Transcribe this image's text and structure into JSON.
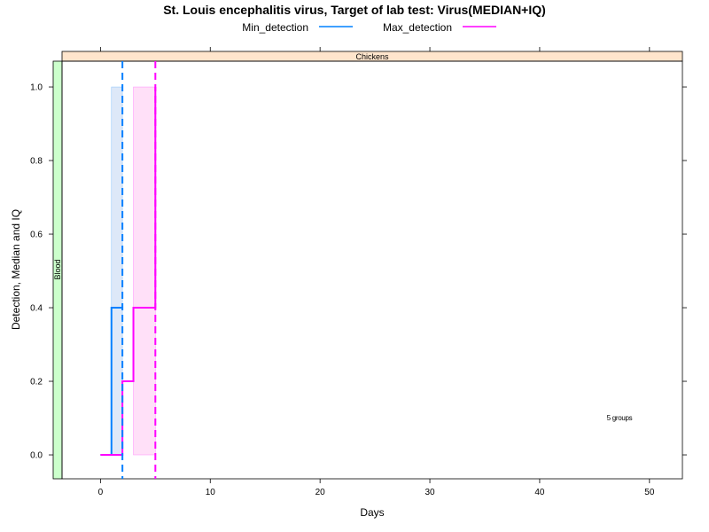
{
  "chart_data": {
    "type": "line",
    "title": "St. Louis encephalitis virus, Target of lab test: Virus(MEDIAN+IQ)",
    "xlabel": "Days",
    "ylabel": "Detection, Median and IQ",
    "xlim": [
      -3.5,
      53
    ],
    "ylim": [
      -0.065,
      1.07
    ],
    "xticks": [
      0,
      10,
      20,
      30,
      40,
      50
    ],
    "yticks": [
      0.0,
      0.2,
      0.4,
      0.6,
      0.8,
      1.0
    ],
    "xtick_labels": [
      "0",
      "10",
      "20",
      "30",
      "40",
      "50"
    ],
    "ytick_labels": [
      "0.0",
      "0.2",
      "0.4",
      "0.6",
      "0.8",
      "1.0"
    ],
    "strip_top": "Chickens",
    "strip_left": "Blood",
    "annotation": "5 groups",
    "legend_position": "top",
    "series": [
      {
        "name": "Min_detection",
        "color": "#0080ff",
        "band_color": "#dde8f8",
        "steps": [
          [
            0,
            0.0
          ],
          [
            1,
            0.4
          ],
          [
            2,
            0.4
          ]
        ],
        "band": {
          "x": [
            1,
            2
          ],
          "y": [
            0.0,
            1.0
          ]
        },
        "vline": 2
      },
      {
        "name": "Max_detection",
        "color": "#ff00ff",
        "band_color": "#ffe0f8",
        "steps": [
          [
            0,
            0.0
          ],
          [
            2,
            0.2
          ],
          [
            3,
            0.4
          ],
          [
            5,
            1.0
          ]
        ],
        "band": {
          "x": [
            3,
            5
          ],
          "y": [
            0.0,
            1.0
          ]
        },
        "vline": 5
      }
    ]
  }
}
